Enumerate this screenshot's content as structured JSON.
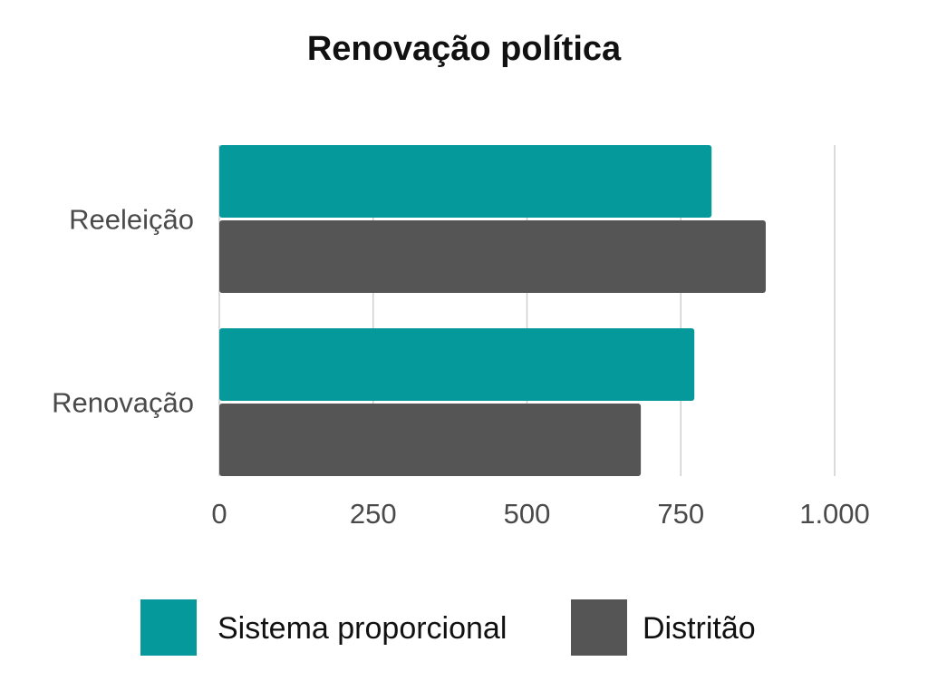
{
  "chart_data": {
    "type": "bar",
    "orientation": "horizontal",
    "title": "Renovação política",
    "xlabel": "",
    "ylabel": "",
    "categories": [
      "Reeleição",
      "Renovação"
    ],
    "series": [
      {
        "name": "Sistema proporcional",
        "color": "#06999c",
        "values": [
          800,
          772
        ]
      },
      {
        "name": "Distritão",
        "color": "#555555",
        "values": [
          888,
          685
        ]
      }
    ],
    "xlim": [
      0,
      1000
    ],
    "ticks": [
      0,
      250,
      500,
      750,
      1000
    ],
    "tick_labels": [
      "0",
      "250",
      "500",
      "750",
      "1.000"
    ],
    "grid": true,
    "legend": "bottom"
  }
}
